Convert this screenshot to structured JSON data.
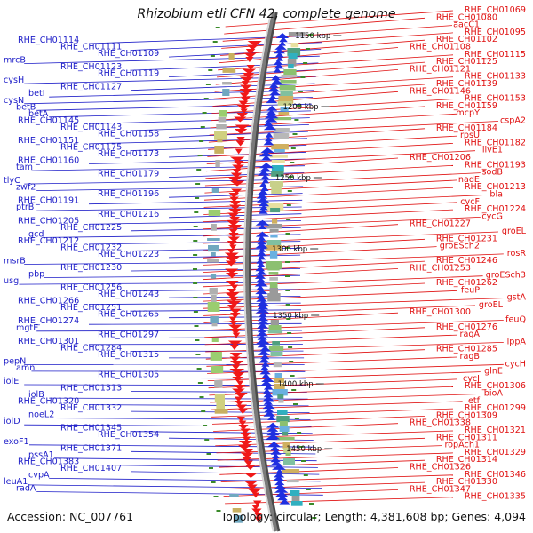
{
  "title": "Rhizobium etli CFN 42, complete genome",
  "accession_text": "Accession: NC_007761",
  "summary_text": "Topology: circular; Length: 4,381,608 bp; Genes: 4,094",
  "colors": {
    "forward_label": "#1c1cc8",
    "reverse_label": "#e01010",
    "backbone": "#7a7a7a",
    "forward_cds": "#1f2fe0",
    "reverse_cds": "#f01818",
    "tick_label": "#111111"
  },
  "scale_ticks": [
    {
      "label": "1150 kbp"
    },
    {
      "label": "1200 kbp"
    },
    {
      "label": "1250 kbp"
    },
    {
      "label": "1300 kbp"
    },
    {
      "label": "1350 kbp"
    },
    {
      "label": "1400 kbp"
    },
    {
      "label": "1450 kbp"
    }
  ],
  "forward_labels": [
    "RHE_CH01114",
    "RHE_CH01111",
    "RHE_CH01109",
    "mrcB",
    "RHE_CH01123",
    "RHE_CH01119",
    "cysH",
    "RHE_CH01127",
    "betI",
    "cysN",
    "betB",
    "betA",
    "RHE_CH01145",
    "RHE_CH01143",
    "RHE_CH01158",
    "RHE_CH01151",
    "RHE_CH01175",
    "RHE_CH01173",
    "RHE_CH01160",
    "tam",
    "RHE_CH01179",
    "tlyC",
    "zwf2",
    "RHE_CH01196",
    "RHE_CH01191",
    "ptrB",
    "RHE_CH01216",
    "RHE_CH01205",
    "RHE_CH01225",
    "gcd",
    "RHE_CH01212",
    "RHE_CH01232",
    "RHE_CH01223",
    "msrB",
    "RHE_CH01230",
    "pbp",
    "usg",
    "RHE_CH01256",
    "RHE_CH01243",
    "RHE_CH01266",
    "RHE_CH01251",
    "RHE_CH01265",
    "RHE_CH01274",
    "mgtE",
    "RHE_CH01297",
    "RHE_CH01301",
    "RHE_CH01284",
    "RHE_CH01315",
    "pepN",
    "amn",
    "RHE_CH01305",
    "iolE",
    "RHE_CH01313",
    "iolB",
    "RHE_CH01320",
    "RHE_CH01332",
    "noeL2",
    "iolD",
    "RHE_CH01345",
    "RHE_CH01354",
    "exoF1",
    "RHE_CH01371",
    "pssA1",
    "RHE_CH01383",
    "RHE_CH01407",
    "cvpA",
    "leuA1",
    "radA"
  ],
  "reverse_labels": [
    "RHE_CH01069",
    "RHE_CH01080",
    "aacC1",
    "RHE_CH01095",
    "RHE_CH01102",
    "RHE_CH01108",
    "RHE_CH01115",
    "RHE_CH01125",
    "RHE_CH01121",
    "RHE_CH01133",
    "RHE_CH01139",
    "RHE_CH01146",
    "RHE_CH01153",
    "RHE_CH01159",
    "mcpY",
    "cspA2",
    "RHE_CH01184",
    "rpsU",
    "RHE_CH01182",
    "ilvE1",
    "RHE_CH01206",
    "RHE_CH01193",
    "sodB",
    "nadE",
    "RHE_CH01213",
    "bla",
    "cycF",
    "RHE_CH01224",
    "cycG",
    "RHE_CH01227",
    "groEL",
    "RHE_CH01231",
    "groESch2",
    "rosR",
    "RHE_CH01246",
    "RHE_CH01253",
    "groESch3",
    "RHE_CH01262",
    "feuP",
    "gstA",
    "groEL",
    "RHE_CH01300",
    "feuQ",
    "RHE_CH01276",
    "ragA",
    "lppA",
    "RHE_CH01285",
    "ragB",
    "cycH",
    "glnE",
    "cycJ",
    "RHE_CH01306",
    "bioA",
    "etf",
    "RHE_CH01299",
    "RHE_CH01309",
    "RHE_CH01338",
    "RHE_CH01321",
    "RHE_CH01311",
    "ropAch1",
    "RHE_CH01329",
    "RHE_CH01314",
    "RHE_CH01326",
    "RHE_CH01346",
    "RHE_CH01330",
    "RHE_CH01347",
    "RHE_CH01335"
  ]
}
